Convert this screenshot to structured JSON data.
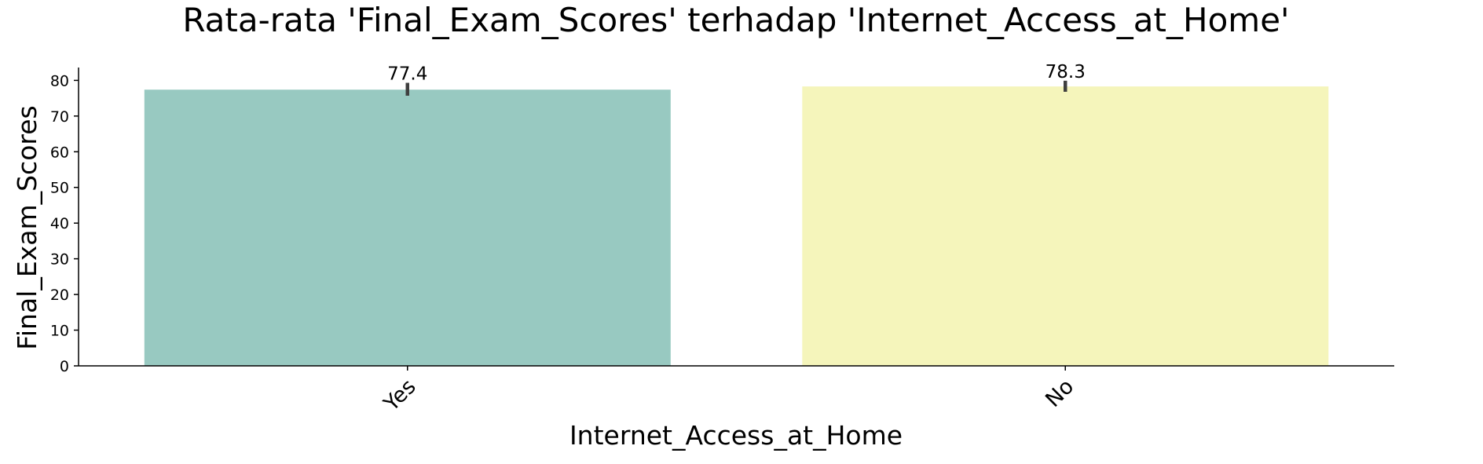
{
  "chart_data": {
    "type": "bar",
    "title": "Rata-rata 'Final_Exam_Scores' terhadap 'Internet_Access_at_Home'",
    "xlabel": "Internet_Access_at_Home",
    "ylabel": "Final_Exam_Scores",
    "categories": [
      "Yes",
      "No"
    ],
    "values": [
      77.4,
      78.3
    ],
    "data_labels": [
      "77.4",
      "78.3"
    ],
    "error_bars": [
      {
        "low": 75.7,
        "high": 79.3
      },
      {
        "low": 76.8,
        "high": 79.9
      }
    ],
    "ylim": [
      0,
      83.6
    ],
    "yticks": [
      0,
      10,
      20,
      30,
      40,
      50,
      60,
      70,
      80
    ],
    "grid": false,
    "legend": "none",
    "colors": [
      "#98c9c1",
      "#f5f5bb"
    ],
    "errorbar_color": "#3f3f3f",
    "axis_color": "#000000"
  }
}
